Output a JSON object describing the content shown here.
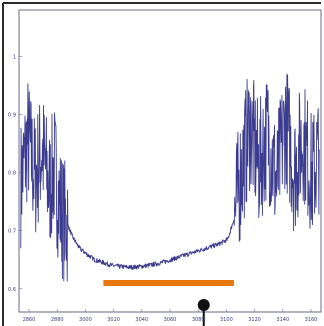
{
  "chart_data": {
    "type": "line",
    "title": "",
    "xlabel": "",
    "ylabel": "",
    "xlim": [
      2850,
      3190
    ],
    "ylim": [
      0.56,
      1.08
    ],
    "x_ticks": [
      2860,
      2880,
      3000,
      3020,
      3040,
      3060,
      3080,
      3100,
      3120,
      3140,
      3160
    ],
    "x_tick_labels": [
      "2860",
      "2880",
      "3000",
      "3020",
      "3040",
      "3060",
      "3080",
      "3100",
      "3120",
      "3140",
      "3160"
    ],
    "y_ticks": [
      0.6,
      0.7,
      0.8,
      0.9,
      1.0
    ],
    "y_tick_labels": [
      "0.6",
      "0.7",
      "0.8",
      "0.9",
      "1"
    ],
    "grid": false,
    "series": [
      {
        "color": "#3b3b8f",
        "x": [
          2852,
          2860,
          2868,
          2876,
          2884,
          2890,
          2895,
          2900,
          2905,
          2910,
          2918,
          2926,
          2935,
          2945,
          2955,
          2965,
          2975,
          2985,
          2995,
          3005,
          3015,
          3025,
          3035,
          3045,
          3055,
          3065,
          3075,
          3085,
          3092,
          3100,
          3110,
          3120,
          3130,
          3140,
          3150,
          3160,
          3170,
          3180,
          3188
        ],
        "y": [
          0.78,
          0.86,
          0.79,
          0.84,
          0.77,
          0.81,
          0.75,
          0.72,
          0.71,
          0.69,
          0.67,
          0.66,
          0.65,
          0.645,
          0.64,
          0.638,
          0.637,
          0.638,
          0.64,
          0.643,
          0.647,
          0.652,
          0.657,
          0.662,
          0.667,
          0.672,
          0.677,
          0.685,
          0.72,
          0.8,
          0.88,
          0.81,
          0.87,
          0.78,
          0.89,
          0.8,
          0.86,
          0.79,
          0.84
        ]
      }
    ],
    "annotations": [
      {
        "kind": "horizontal-bar",
        "color": "#e8780c",
        "x_start": 2945,
        "x_end": 3092,
        "y": 0.61
      },
      {
        "kind": "pin-marker",
        "color": "#111111",
        "x": 3058,
        "y_top": 0.572
      }
    ]
  }
}
